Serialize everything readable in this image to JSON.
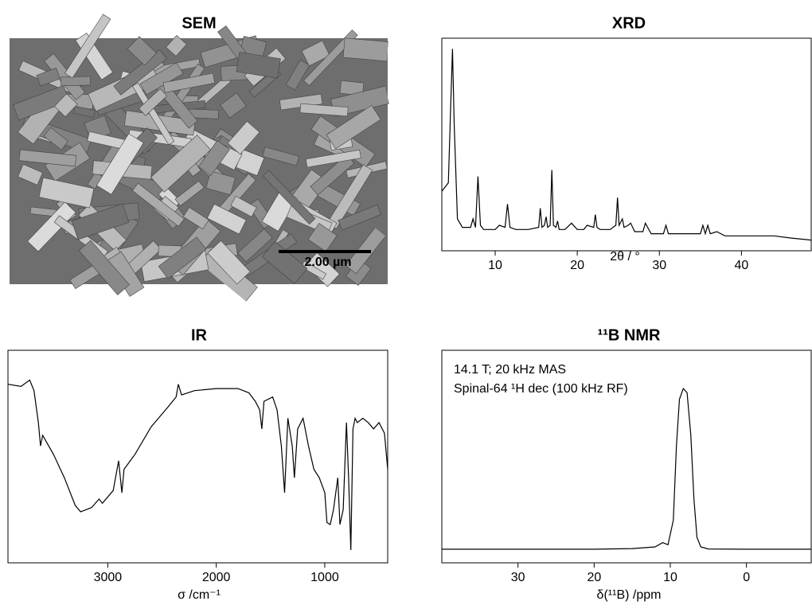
{
  "chart_data": [
    {
      "type": "image",
      "title": "SEM",
      "scale_bar_label": "2.00 µm"
    },
    {
      "type": "line",
      "title": "XRD",
      "xlabel": "2θ / °",
      "color": "#000000",
      "xlim": [
        3.5,
        48.5
      ],
      "ylim": [
        0,
        100
      ],
      "xticks": [
        10,
        20,
        30,
        40
      ],
      "x": [
        3.5,
        4.3,
        4.6,
        4.8,
        5.0,
        5.4,
        6,
        7,
        7.3,
        7.6,
        7.9,
        8.2,
        8.6,
        10,
        10.5,
        11.2,
        11.5,
        11.8,
        12.5,
        14,
        15.3,
        15.5,
        15.7,
        16,
        16.2,
        16.4,
        16.7,
        16.9,
        17.1,
        17.4,
        17.6,
        17.8,
        18.5,
        19.3,
        20,
        20.8,
        21.2,
        22,
        22.2,
        22.4,
        22.8,
        24,
        24.7,
        24.9,
        25.1,
        25.5,
        25.7,
        26.2,
        26.5,
        27,
        28,
        28.3,
        29,
        30.5,
        30.8,
        31.1,
        32,
        33,
        35,
        35.3,
        35.6,
        35.9,
        36.2,
        37,
        38,
        40,
        42,
        44,
        46,
        48.5
      ],
      "values": [
        28,
        32,
        70,
        95,
        60,
        15,
        11,
        11,
        15,
        11,
        35,
        12,
        10,
        10,
        12,
        11,
        22,
        11,
        10,
        10,
        11,
        20,
        11,
        12,
        16,
        11,
        12,
        38,
        12,
        11,
        14,
        10,
        10,
        13,
        10,
        10,
        12,
        11,
        17,
        11,
        10,
        10,
        12,
        25,
        12,
        15,
        11,
        12,
        13,
        9,
        9,
        13,
        8,
        8,
        12,
        8,
        8,
        8,
        8,
        12,
        8,
        12,
        8,
        9,
        7,
        7,
        7,
        7,
        6,
        5
      ]
    },
    {
      "type": "line",
      "title": "IR",
      "xlabel": "σ /cm⁻¹",
      "color": "#000000",
      "xlim": [
        3920,
        420
      ],
      "ylim": [
        0,
        100
      ],
      "xticks": [
        3000,
        2000,
        1000
      ],
      "x": [
        3920,
        3800,
        3720,
        3680,
        3640,
        3620,
        3600,
        3500,
        3400,
        3300,
        3250,
        3150,
        3080,
        3050,
        2950,
        2900,
        2870,
        2850,
        2750,
        2600,
        2450,
        2370,
        2350,
        2320,
        2200,
        2000,
        1800,
        1700,
        1640,
        1600,
        1580,
        1560,
        1480,
        1440,
        1400,
        1370,
        1340,
        1300,
        1280,
        1250,
        1200,
        1150,
        1100,
        1050,
        1000,
        980,
        950,
        920,
        880,
        860,
        830,
        800,
        780,
        760,
        740,
        720,
        700,
        650,
        600,
        550,
        500,
        450,
        420
      ],
      "values": [
        84,
        83,
        86,
        81,
        66,
        55,
        60,
        51,
        40,
        27,
        24,
        26,
        30,
        28,
        34,
        48,
        33,
        44,
        51,
        64,
        73,
        78,
        84,
        79,
        81,
        82,
        82,
        80,
        76,
        72,
        63,
        76,
        78,
        72,
        55,
        33,
        68,
        55,
        40,
        63,
        68,
        55,
        44,
        40,
        33,
        19,
        18,
        25,
        40,
        18,
        25,
        66,
        40,
        6,
        63,
        68,
        66,
        68,
        66,
        63,
        66,
        61,
        44
      ]
    },
    {
      "type": "line",
      "title": "¹¹B NMR",
      "xlabel": "δ(¹¹B) /ppm",
      "color": "#000000",
      "annotations": [
        "14.1 T; 20 kHz MAS",
        "Spinal-64 ¹H dec (100 kHz RF)"
      ],
      "xlim": [
        40,
        -8.5
      ],
      "ylim": [
        0,
        100
      ],
      "xticks": [
        30,
        20,
        10,
        0
      ],
      "x": [
        40,
        20,
        15,
        12,
        11,
        10.3,
        9.6,
        9.2,
        8.8,
        8.3,
        7.8,
        7.3,
        6.9,
        6.5,
        6,
        5,
        0,
        -8.5
      ],
      "values": [
        6.4,
        6.4,
        6.7,
        7.5,
        9.5,
        8.5,
        20,
        55,
        77,
        82,
        80,
        60,
        30,
        12,
        7.5,
        6.5,
        6.4,
        6.4
      ]
    }
  ]
}
